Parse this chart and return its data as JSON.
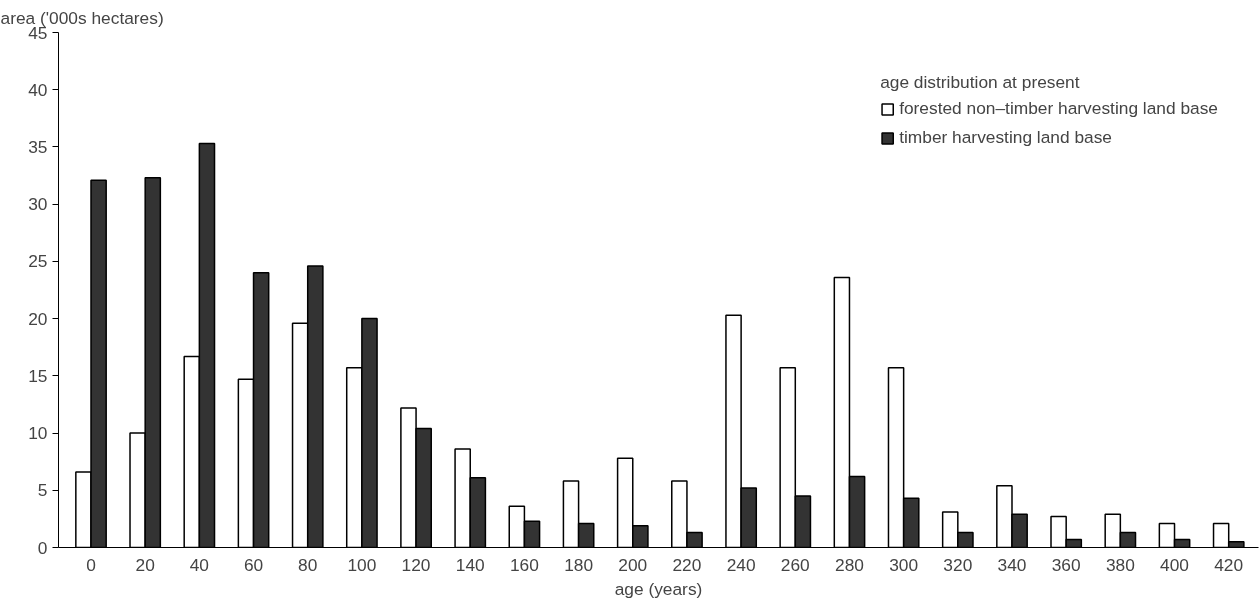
{
  "chart_data": {
    "type": "bar",
    "xlabel": "age (years)",
    "ylabel": "area ('000s hectares)",
    "legend_title": "age distribution at present",
    "categories": [
      "0",
      "20",
      "40",
      "60",
      "80",
      "100",
      "120",
      "140",
      "160",
      "180",
      "200",
      "220",
      "240",
      "260",
      "280",
      "300",
      "320",
      "340",
      "360",
      "380",
      "400",
      "420"
    ],
    "series": [
      {
        "name": "forested non–timber harvesting land base",
        "color": "#ffffff",
        "values": [
          6.6,
          10,
          16.7,
          14.7,
          19.6,
          15.7,
          12.2,
          8.6,
          3.6,
          5.8,
          7.8,
          5.8,
          20.3,
          15.7,
          23.6,
          15.7,
          3.1,
          5.4,
          2.7,
          2.9,
          2.1,
          2.1
        ]
      },
      {
        "name": "timber harvesting land base",
        "color": "#333333",
        "values": [
          32.1,
          32.3,
          35.3,
          24,
          24.6,
          20,
          10.4,
          6.1,
          2.3,
          2.1,
          1.9,
          1.3,
          5.2,
          4.5,
          6.2,
          4.3,
          1.3,
          2.9,
          0.7,
          1.3,
          0.7,
          0.5
        ]
      }
    ],
    "ylim": [
      0,
      45
    ],
    "yticks": [
      0,
      5,
      10,
      15,
      20,
      25,
      30,
      35,
      40,
      45
    ],
    "grid": false,
    "legend": "top right"
  }
}
